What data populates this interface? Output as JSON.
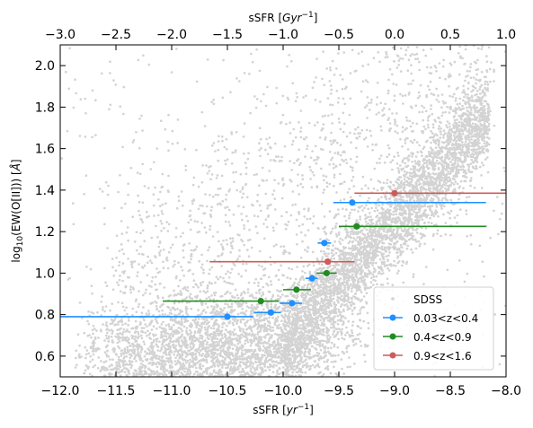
{
  "chart_data": {
    "type": "scatter",
    "title": "",
    "xlabel": "sSFR [yr$^{-1}$]",
    "xlabel_parts": {
      "main": "sSFR [",
      "italic": "yr",
      "sup": "−1",
      "end": "]"
    },
    "ylabel_parts": {
      "pre": "log",
      "sub": "10",
      "post": "(EW(O[II])) [",
      "italic": "Å",
      "end": "]"
    },
    "top_xlabel_parts": {
      "main": "sSFR [",
      "italic": "Gyr",
      "sup": "−1",
      "end": "]"
    },
    "xlim": [
      -12.0,
      -8.0
    ],
    "ylim": [
      0.5,
      2.1
    ],
    "top_xlim": [
      -3.0,
      1.0
    ],
    "x_ticks": [
      "−12.0",
      "−11.5",
      "−11.0",
      "−10.5",
      "−10.0",
      "−9.5",
      "−9.0",
      "−8.5",
      "−8.0"
    ],
    "y_ticks": [
      "0.6",
      "0.8",
      "1.0",
      "1.2",
      "1.4",
      "1.6",
      "1.8",
      "2.0"
    ],
    "top_x_ticks": [
      "−3.0",
      "−2.5",
      "−2.0",
      "−1.5",
      "−1.0",
      "−0.5",
      "0.0",
      "0.5",
      "1.0"
    ],
    "grid": false,
    "background_colors": {
      "sdss_points": "#d3d3d3"
    },
    "legend": {
      "placement": "lower-right",
      "entries": [
        "SDSS",
        "0.03<z<0.4",
        "0.4<z<0.9",
        "0.9<z<1.6"
      ]
    },
    "series": [
      {
        "name": "0.03<z<0.4",
        "color": "#1e90ff",
        "points": [
          {
            "x": -9.38,
            "y": 1.34,
            "xerr_lo": -9.55,
            "xerr_hi": -8.18
          },
          {
            "x": -9.63,
            "y": 1.145,
            "xerr_lo": -9.69,
            "xerr_hi": -9.57
          },
          {
            "x": -9.74,
            "y": 0.975,
            "xerr_lo": -9.8,
            "xerr_hi": -9.69
          },
          {
            "x": -9.92,
            "y": 0.855,
            "xerr_lo": -10.03,
            "xerr_hi": -9.83
          },
          {
            "x": -10.11,
            "y": 0.81,
            "xerr_lo": -10.26,
            "xerr_hi": -10.02
          },
          {
            "x": -10.5,
            "y": 0.79,
            "xerr_lo": -12.0,
            "xerr_hi": -10.27
          }
        ]
      },
      {
        "name": "0.4<z<0.9",
        "color": "#228b22",
        "points": [
          {
            "x": -9.34,
            "y": 1.225,
            "xerr_lo": -9.5,
            "xerr_hi": -8.18
          },
          {
            "x": -9.61,
            "y": 1.0,
            "xerr_lo": -9.7,
            "xerr_hi": -9.52
          },
          {
            "x": -9.88,
            "y": 0.92,
            "xerr_lo": -10.0,
            "xerr_hi": -9.75
          },
          {
            "x": -10.2,
            "y": 0.865,
            "xerr_lo": -11.08,
            "xerr_hi": -10.04
          }
        ]
      },
      {
        "name": "0.9<z<1.6",
        "color": "#cd5c5c",
        "points": [
          {
            "x": -9.0,
            "y": 1.385,
            "xerr_lo": -9.36,
            "xerr_hi": -8.0
          },
          {
            "x": -9.6,
            "y": 1.055,
            "xerr_lo": -10.66,
            "xerr_hi": -9.36
          }
        ]
      }
    ]
  }
}
